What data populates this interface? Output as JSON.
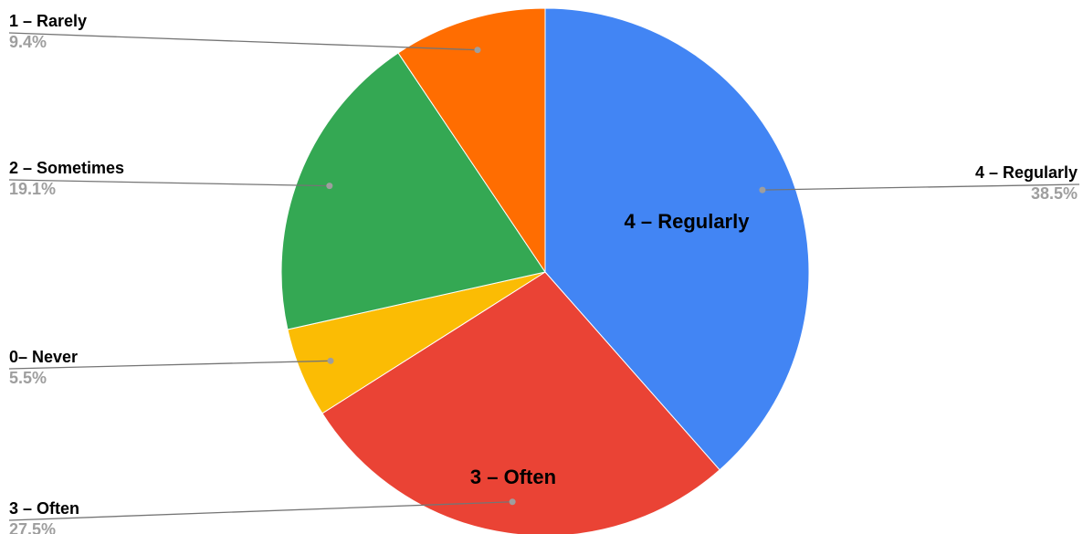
{
  "chart_data": {
    "type": "pie",
    "start_angle_deg": 0,
    "direction": "clockwise",
    "slices": [
      {
        "label": "4 – Regularly",
        "value": 38.5,
        "percent_label": "38.5%",
        "color": "#4285f4",
        "inside_label": "4 – Regularly",
        "external_side": "right"
      },
      {
        "label": "3 – Often",
        "value": 27.5,
        "percent_label": "27.5%",
        "color": "#ea4335",
        "inside_label": "3 – Often",
        "external_side": "left"
      },
      {
        "label": "0– Never",
        "value": 5.5,
        "percent_label": "5.5%",
        "color": "#fbbc04",
        "inside_label": "",
        "external_side": "left"
      },
      {
        "label": "2 – Sometimes",
        "value": 19.1,
        "percent_label": "19.1%",
        "color": "#34a853",
        "inside_label": "",
        "external_side": "left"
      },
      {
        "label": "1 – Rarely",
        "value": 9.4,
        "percent_label": "9.4%",
        "color": "#ff6d01",
        "inside_label": "",
        "external_side": "left"
      }
    ]
  }
}
